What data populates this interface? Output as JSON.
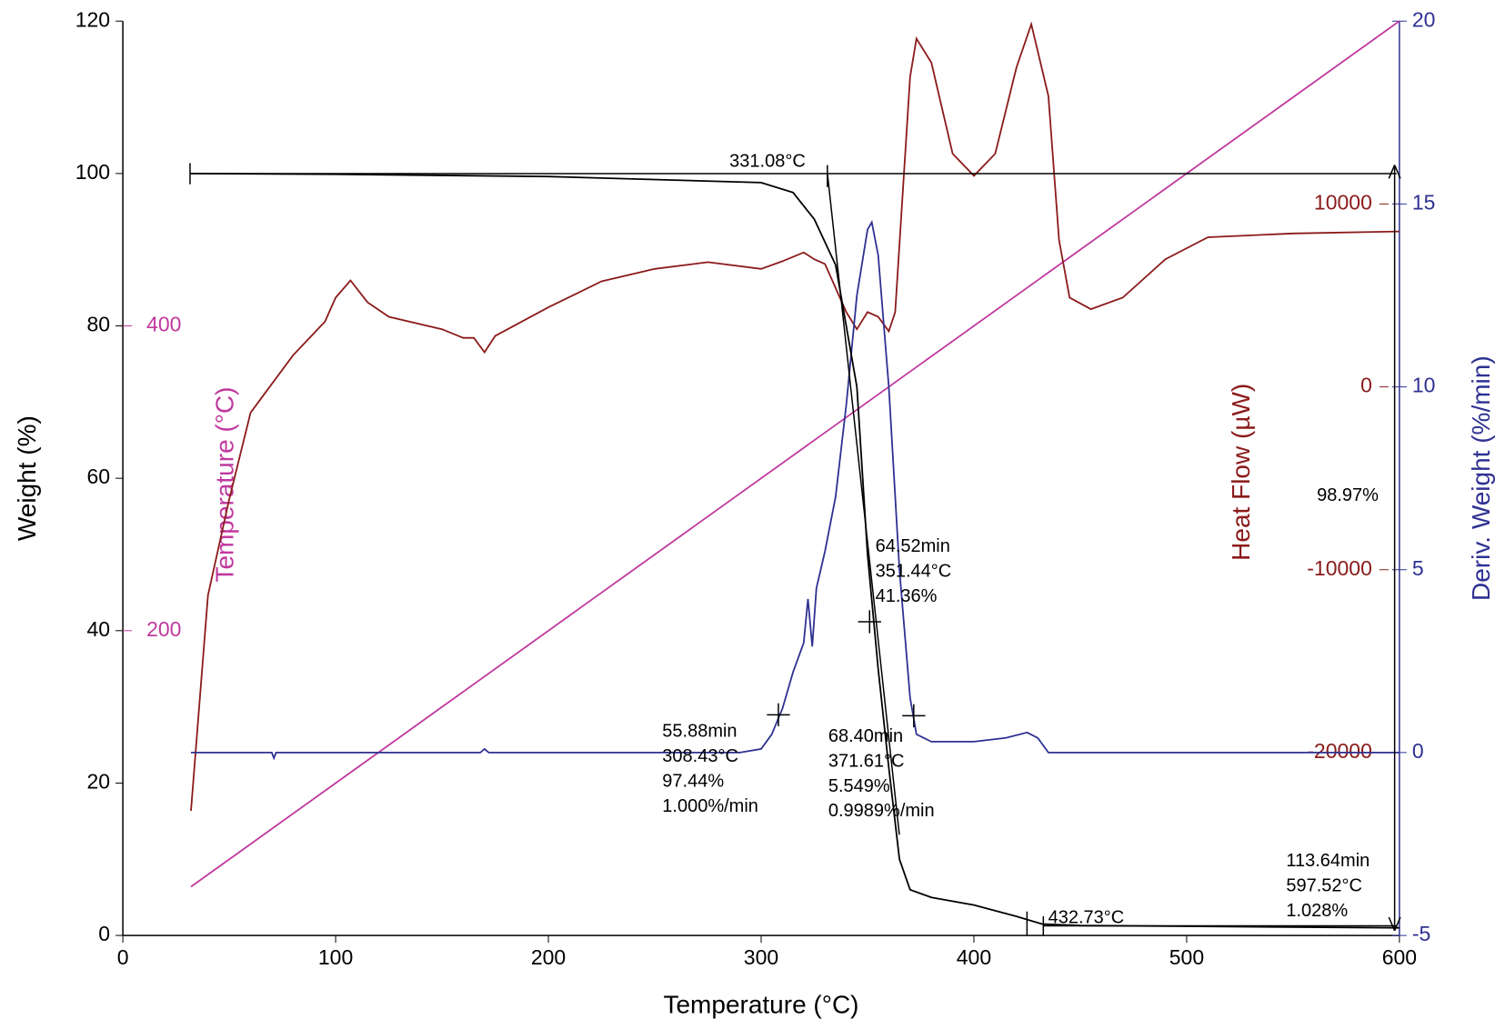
{
  "chart_data": {
    "type": "line",
    "xlabel": "Temperature (°C)",
    "xlim": [
      0,
      600
    ],
    "xticks": [
      0,
      100,
      200,
      300,
      400,
      500,
      600
    ],
    "ylabel": "Weight (%)",
    "ylim": [
      0,
      120
    ],
    "yticks": [
      0,
      20,
      40,
      60,
      80,
      100,
      120
    ],
    "y2label": "Deriv. Weight (%/min)",
    "y2lim": [
      -5,
      20
    ],
    "y2ticks": [
      -5,
      0,
      5,
      10,
      15,
      20
    ],
    "y2color": "#2e3192",
    "y3label": "Heat Flow (µW)",
    "y3lim": [
      -30000,
      20000
    ],
    "y3ticks": [
      -20000,
      -10000,
      0,
      10000
    ],
    "y3color": "#8b1a1a",
    "y4label": "Temperature (°C)",
    "y4lim": [
      0,
      600
    ],
    "y4ticks": [
      200,
      400
    ],
    "y4color": "#c0399e",
    "series": [
      {
        "axis": "y",
        "color": "#000000",
        "x": [
          32,
          100,
          200,
          300,
          315,
          325,
          335,
          345,
          350,
          355,
          360,
          365,
          370,
          380,
          400,
          420,
          432,
          450,
          500,
          600
        ],
        "values": [
          100,
          99.9,
          99.6,
          98.8,
          97.5,
          94,
          88,
          72,
          50,
          35,
          22,
          10,
          6,
          5,
          4,
          2.5,
          1.5,
          1.3,
          1.2,
          1.0
        ]
      },
      {
        "axis": "y2",
        "color": "#2e3192",
        "x": [
          32,
          70,
          71,
          72,
          168,
          170,
          172,
          290,
          300,
          305,
          310,
          315,
          320,
          322,
          324,
          326,
          330,
          335,
          340,
          345,
          350,
          352,
          355,
          360,
          365,
          370,
          373,
          380,
          400,
          415,
          425,
          430,
          435,
          600
        ],
        "values": [
          0,
          0,
          -0.15,
          0,
          0,
          0.1,
          0,
          0,
          0.1,
          0.5,
          1.2,
          2.2,
          3.0,
          4.2,
          2.9,
          4.5,
          5.5,
          7,
          9.5,
          12.5,
          14.3,
          14.5,
          13.6,
          10,
          5,
          1.5,
          0.5,
          0.3,
          0.3,
          0.4,
          0.55,
          0.4,
          0,
          0
        ]
      },
      {
        "axis": "y3",
        "color": "#8b1a1a",
        "x": [
          32,
          40,
          50,
          60,
          65,
          80,
          95,
          100,
          107,
          115,
          125,
          150,
          160,
          165,
          170,
          175,
          200,
          225,
          250,
          275,
          300,
          310,
          320,
          325,
          330,
          340,
          345,
          350,
          355,
          360,
          363,
          370,
          373,
          380,
          390,
          400,
          410,
          420,
          427,
          435,
          440,
          445,
          455,
          470,
          490,
          510,
          550,
          600
        ],
        "values": [
          -23190,
          -11400,
          -6140,
          -1420,
          -630,
          1730,
          3570,
          4880,
          5820,
          4620,
          3830,
          3150,
          2680,
          2680,
          1890,
          2780,
          4350,
          5770,
          6450,
          6820,
          6450,
          6870,
          7350,
          6980,
          6720,
          4090,
          3150,
          4090,
          3830,
          3040,
          4090,
          16950,
          19040,
          17730,
          12750,
          11540,
          12750,
          17470,
          19830,
          15900,
          8030,
          4880,
          4250,
          4880,
          6980,
          8180,
          8390,
          8500
        ]
      },
      {
        "axis": "y4",
        "color": "#c0399e",
        "x": [
          32,
          600
        ],
        "values": [
          32,
          600
        ]
      }
    ],
    "annotations": [
      [
        "331.08°C"
      ],
      [
        "64.52min",
        "351.44°C",
        "41.36%"
      ],
      [
        "55.88min",
        "308.43°C",
        "97.44%",
        "1.000%/min"
      ],
      [
        "68.40min",
        "371.61°C",
        "5.549%",
        "0.9989%/min"
      ],
      [
        "432.73°C"
      ],
      [
        "98.97%"
      ],
      [
        "113.64min",
        "597.52°C",
        "1.028%"
      ]
    ]
  }
}
